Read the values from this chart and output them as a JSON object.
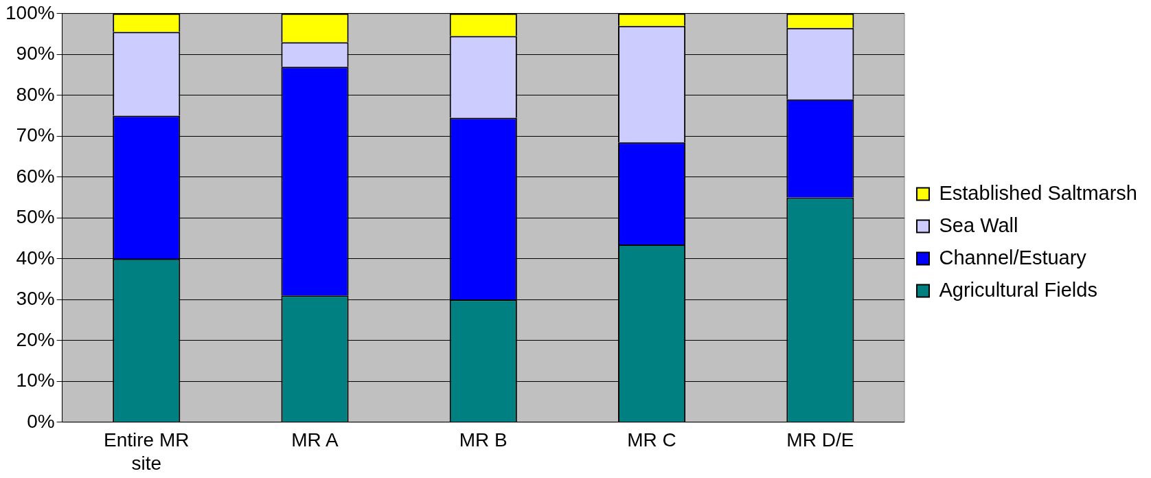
{
  "chart_data": {
    "type": "bar",
    "stacked": true,
    "categories": [
      "Entire MR site",
      "MR A",
      "MR B",
      "MR C",
      "MR D/E"
    ],
    "series": [
      {
        "name": "Agricultural Fields",
        "color": "#008080",
        "values": [
          40,
          31,
          30,
          43.5,
          55
        ]
      },
      {
        "name": "Channel/Estuary",
        "color": "#0000ff",
        "values": [
          35,
          56,
          44.5,
          25,
          24
        ]
      },
      {
        "name": "Sea Wall",
        "color": "#ccccff",
        "values": [
          20.5,
          6,
          20,
          28.5,
          17.5
        ]
      },
      {
        "name": "Established Saltmarsh",
        "color": "#ffff00",
        "values": [
          4.5,
          7,
          5.5,
          3,
          3.5
        ]
      }
    ],
    "ylim": [
      0,
      100
    ],
    "yticks": [
      {
        "value": 0,
        "label": "0%"
      },
      {
        "value": 10,
        "label": "10%"
      },
      {
        "value": 20,
        "label": "20%"
      },
      {
        "value": 30,
        "label": "30%"
      },
      {
        "value": 40,
        "label": "40%"
      },
      {
        "value": 50,
        "label": "50%"
      },
      {
        "value": 60,
        "label": "60%"
      },
      {
        "value": 70,
        "label": "70%"
      },
      {
        "value": 80,
        "label": "80%"
      },
      {
        "value": 90,
        "label": "90%"
      },
      {
        "value": 100,
        "label": "100%"
      }
    ],
    "grid": "y",
    "legend": "right"
  }
}
